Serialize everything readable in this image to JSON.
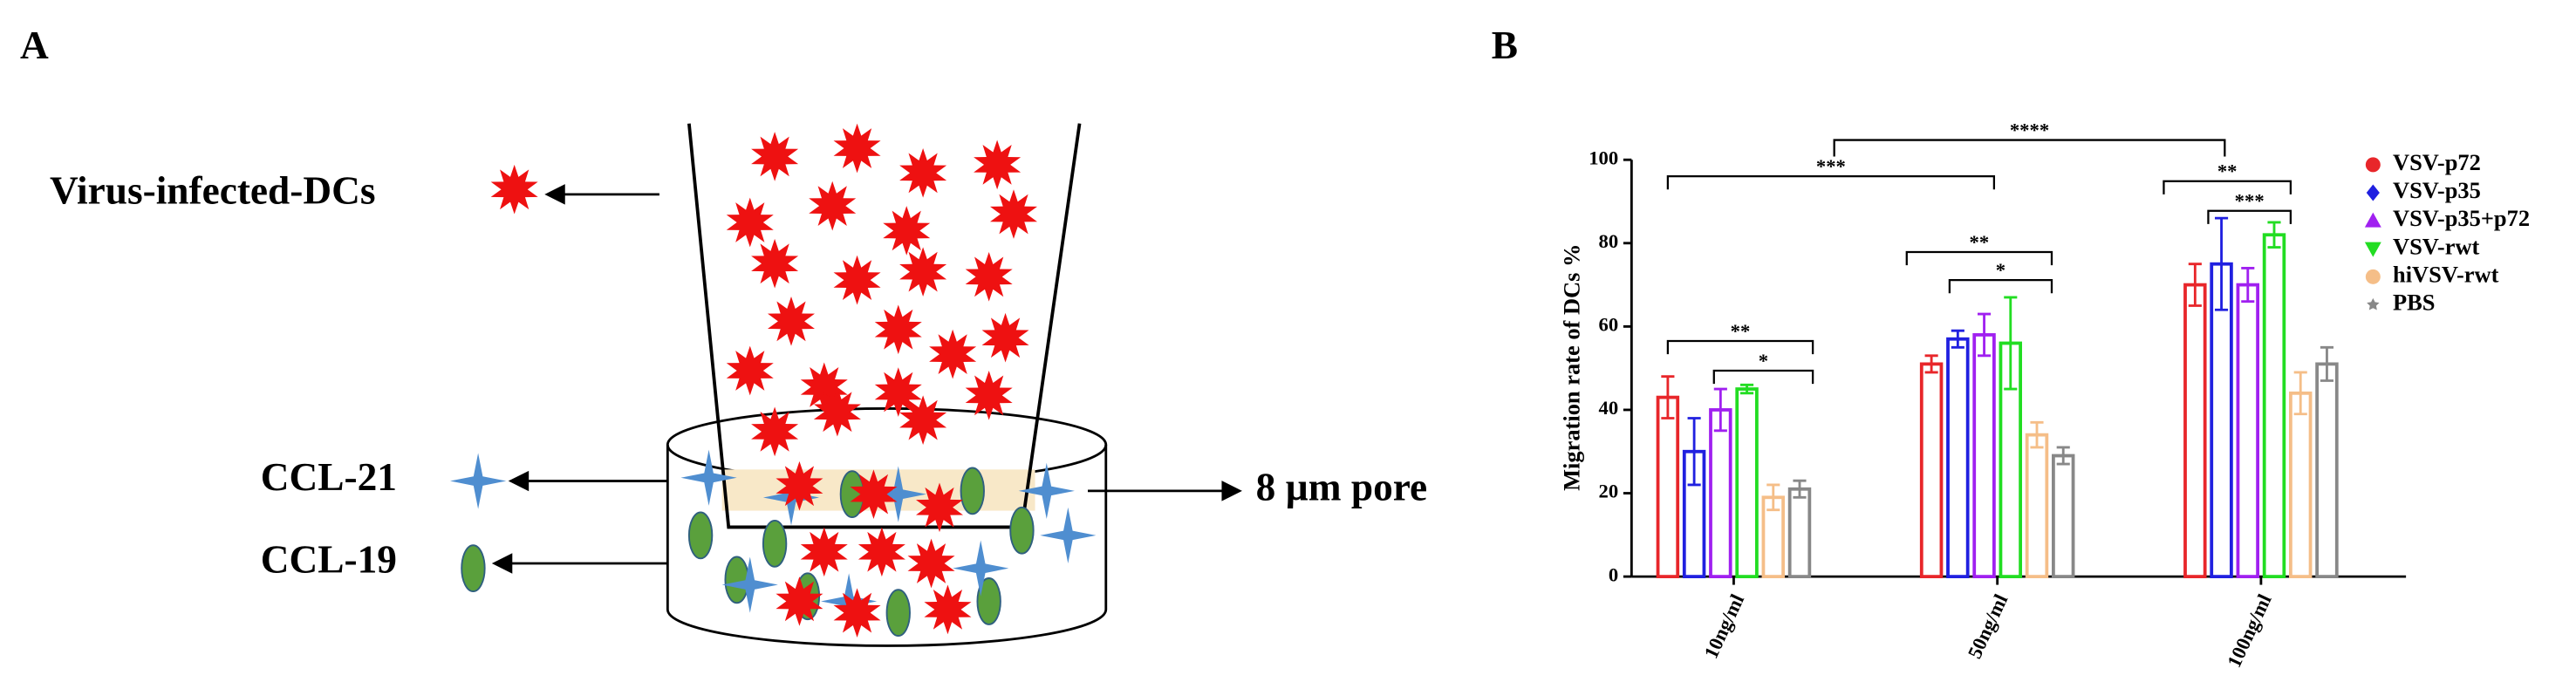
{
  "diagram": {
    "panel_label": "A",
    "cells_label": "Virus-infected-DCs",
    "ccl21_label": "CCL-21",
    "ccl19_label": "CCL-19",
    "pore_label": "8 µm pore"
  },
  "chart_data": {
    "type": "bar",
    "panel_label": "B",
    "y_label": "Migration rate of DCs %",
    "categories": [
      "10ng/ml",
      "50ng/ml",
      "100ng/ml"
    ],
    "series": [
      {
        "name": "VSV-p72",
        "color": "#e8262a",
        "marker": "circle",
        "values": [
          43,
          51,
          70
        ],
        "errors": [
          5,
          2,
          5
        ]
      },
      {
        "name": "VSV-p35",
        "color": "#2020e0",
        "marker": "diamond",
        "values": [
          30,
          57,
          75
        ],
        "errors": [
          8,
          2,
          11
        ]
      },
      {
        "name": "VSV-p35+p72",
        "color": "#a020f0",
        "marker": "triangle-up",
        "values": [
          40,
          58,
          70
        ],
        "errors": [
          5,
          5,
          4
        ]
      },
      {
        "name": "VSV-rwt",
        "color": "#22dd22",
        "marker": "triangle-down",
        "values": [
          45,
          56,
          82
        ],
        "errors": [
          1,
          11,
          3
        ]
      },
      {
        "name": "hiVSV-rwt",
        "color": "#f5be88",
        "marker": "circle",
        "values": [
          19,
          34,
          44
        ],
        "errors": [
          3,
          3,
          5
        ]
      },
      {
        "name": "PBS",
        "color": "#888888",
        "marker": "star",
        "values": [
          21,
          29,
          51
        ],
        "errors": [
          2,
          2,
          4
        ]
      }
    ],
    "annotations": [
      "**",
      "*",
      "**",
      "*",
      "**",
      "***",
      "****",
      "***"
    ],
    "ylim": [
      0,
      100
    ],
    "yticks": [
      0,
      20,
      40,
      60,
      80,
      100
    ],
    "grid": false,
    "legend": "right"
  }
}
